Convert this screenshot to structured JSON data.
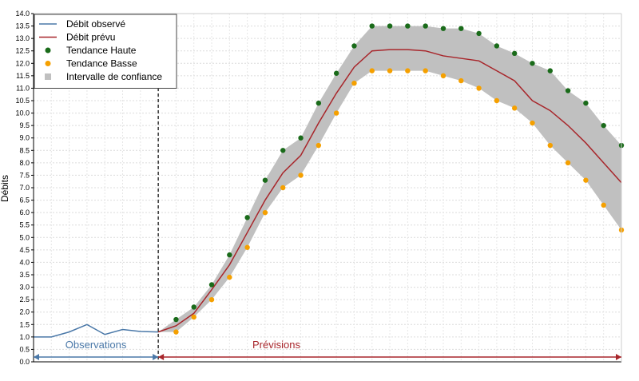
{
  "chart_data": {
    "type": "line",
    "title": "",
    "xlabel": "",
    "ylabel": "Débits",
    "ylim": [
      0,
      14
    ],
    "y_ticks": [
      "0.0",
      "0.5",
      "1.0",
      "1.5",
      "2.0",
      "2.5",
      "3.0",
      "3.5",
      "4.0",
      "4.5",
      "5.0",
      "5.5",
      "6.0",
      "6.5",
      "7.0",
      "7.5",
      "8.0",
      "8.5",
      "9.0",
      "9.5",
      "10.0",
      "10.5",
      "11.0",
      "11.5",
      "12.0",
      "12.5",
      "13.0",
      "13.5",
      "14.0"
    ],
    "grid": true,
    "legend_position": "top-left",
    "legend": [
      {
        "label": "Débit observé",
        "symbol": "line",
        "color": "#4a78a8"
      },
      {
        "label": "Débit prévu",
        "symbol": "line",
        "color": "#a8262b"
      },
      {
        "label": "Tendance Haute",
        "symbol": "dot",
        "color": "#1a6b1a"
      },
      {
        "label": "Tendance Basse",
        "symbol": "dot",
        "color": "#f5a000"
      },
      {
        "label": "Intervalle de confiance",
        "symbol": "square",
        "color": "#c0c0c0"
      }
    ],
    "series": [
      {
        "name": "Débit observé",
        "x": [
          0,
          1,
          2,
          3,
          4,
          5,
          6,
          7
        ],
        "values": [
          1.0,
          1.0,
          1.2,
          1.5,
          1.1,
          1.3,
          1.22,
          1.2
        ]
      },
      {
        "name": "Débit prévu",
        "x": [
          7,
          8,
          9,
          10,
          11,
          12,
          13,
          14,
          15,
          16,
          17,
          18,
          19,
          20,
          21,
          22,
          23,
          24,
          25,
          26,
          27,
          28,
          29,
          30,
          31,
          32,
          33
        ],
        "values": [
          1.2,
          1.45,
          1.95,
          2.9,
          3.9,
          5.2,
          6.5,
          7.6,
          8.3,
          9.6,
          10.8,
          11.85,
          12.5,
          12.55,
          12.55,
          12.5,
          12.3,
          12.2,
          12.1,
          11.7,
          11.3,
          10.5,
          10.1,
          9.5,
          8.8,
          8.0,
          7.2
        ]
      },
      {
        "name": "Tendance Haute",
        "x": [
          8,
          9,
          10,
          11,
          12,
          13,
          14,
          15,
          16,
          17,
          18,
          19,
          20,
          21,
          22,
          23,
          24,
          25,
          26,
          27,
          28,
          29,
          30,
          31,
          32,
          33
        ],
        "values": [
          1.7,
          2.2,
          3.1,
          4.3,
          5.8,
          7.3,
          8.5,
          9.0,
          10.4,
          11.6,
          12.7,
          13.5,
          13.5,
          13.5,
          13.5,
          13.4,
          13.4,
          13.2,
          12.7,
          12.4,
          12.0,
          11.7,
          10.9,
          10.4,
          9.5,
          8.7
        ]
      },
      {
        "name": "Tendance Basse",
        "x": [
          8,
          9,
          10,
          11,
          12,
          13,
          14,
          15,
          16,
          17,
          18,
          19,
          20,
          21,
          22,
          23,
          24,
          25,
          26,
          27,
          28,
          29,
          30,
          31,
          32,
          33
        ],
        "values": [
          1.2,
          1.8,
          2.5,
          3.4,
          4.6,
          6.0,
          7.0,
          7.5,
          8.7,
          10.0,
          11.2,
          11.7,
          11.7,
          11.7,
          11.7,
          11.5,
          11.3,
          11.0,
          10.5,
          10.2,
          9.6,
          8.7,
          8.0,
          7.3,
          6.3,
          5.3
        ]
      }
    ],
    "band": {
      "x": [
        7,
        8,
        9,
        10,
        11,
        12,
        13,
        14,
        15,
        16,
        17,
        18,
        19,
        20,
        21,
        22,
        23,
        24,
        25,
        26,
        27,
        28,
        29,
        30,
        31,
        32,
        33
      ],
      "upper": [
        1.2,
        1.7,
        2.2,
        3.1,
        4.3,
        5.8,
        7.3,
        8.5,
        9.0,
        10.4,
        11.6,
        12.7,
        13.5,
        13.5,
        13.5,
        13.5,
        13.4,
        13.4,
        13.2,
        12.7,
        12.4,
        12.0,
        11.7,
        10.9,
        10.4,
        9.5,
        8.7
      ],
      "lower": [
        1.2,
        1.2,
        1.8,
        2.5,
        3.4,
        4.6,
        6.0,
        7.0,
        7.5,
        8.7,
        10.0,
        11.2,
        11.7,
        11.7,
        11.7,
        11.7,
        11.5,
        11.3,
        11.0,
        10.5,
        10.2,
        9.6,
        8.7,
        8.0,
        7.3,
        6.3,
        5.3
      ]
    },
    "forecast_start_x": 7,
    "x_range": [
      0,
      33
    ],
    "periods": [
      {
        "label": "Observations",
        "x_from": 0,
        "x_to": 7,
        "color": "#4a78a8"
      },
      {
        "label": "Prévisions",
        "x_from": 7,
        "x_to": 33,
        "color": "#a8262b"
      }
    ]
  }
}
